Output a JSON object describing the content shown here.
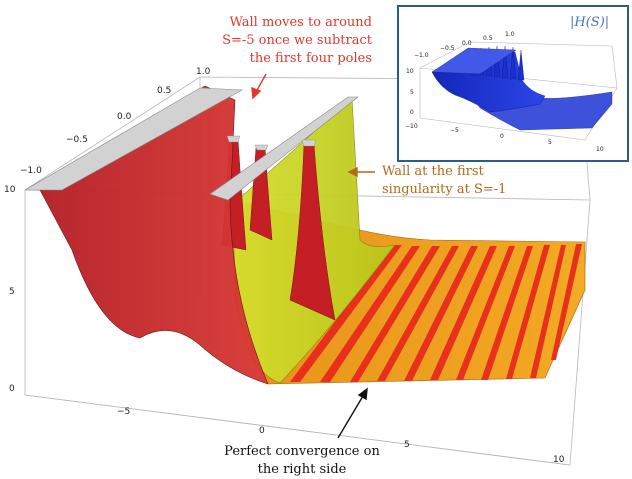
{
  "main_plot": {
    "ticks_back_axis": [
      "1.0",
      "0.5",
      "0.0",
      "−0.5",
      "−1.0"
    ],
    "ticks_z_axis": [
      "10",
      "5",
      "0"
    ],
    "ticks_front_axis": [
      "−5",
      "0",
      "5",
      "10"
    ]
  },
  "annotations": {
    "wall_moves": [
      "Wall moves to around",
      "S=-5 once we subtract",
      "the first four poles"
    ],
    "wall_first": [
      "Wall at the first",
      "singularity at S=-1"
    ],
    "convergence": [
      "Perfect convergence on",
      "the right side"
    ]
  },
  "inset": {
    "title": "|H(S)|",
    "ticks_back_axis": [
      "1.0",
      "0.5",
      "0.0",
      "−0.5",
      "−1.0"
    ],
    "ticks_z_axis": [
      "10",
      "5",
      "0"
    ],
    "ticks_front_axis": [
      "−10",
      "−5",
      "0",
      "5",
      "10"
    ]
  },
  "colors": {
    "red_wall": "#c8282e",
    "green_wall": "#c7d424",
    "orange_surface": "#f0a020",
    "red_stripe": "#e8271c",
    "annotation_red": "#e4362b",
    "annotation_brown": "#b26a16",
    "inset_blue": "#2038d8",
    "inset_border": "#2a5d8a"
  }
}
